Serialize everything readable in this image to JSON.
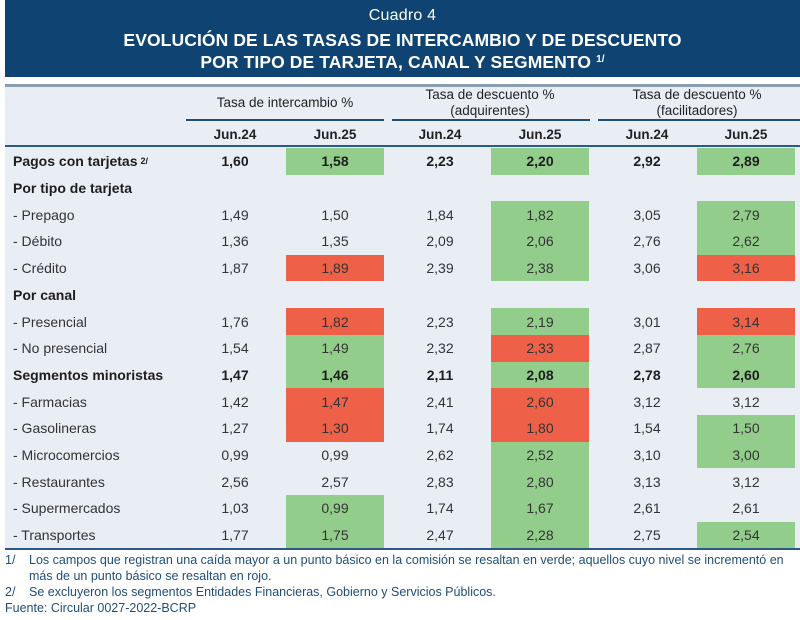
{
  "header": {
    "cuadro": "Cuadro 4",
    "title_line1": "EVOLUCIÓN DE LAS TASAS DE INTERCAMBIO Y DE DESCUENTO",
    "title_line2": "POR TIPO DE TARJETA, CANAL Y SEGMENTO",
    "title_footnote": "1/"
  },
  "column_groups": [
    {
      "line1": "Tasa de intercambio %",
      "line2": ""
    },
    {
      "line1": "Tasa de descuento %",
      "line2": "(adquirentes)"
    },
    {
      "line1": "Tasa de descuento %",
      "line2": "(facilitadores)"
    }
  ],
  "column_headers": [
    "Jun.24",
    "Jun.25",
    "Jun.24",
    "Jun.25",
    "Jun.24",
    "Jun.25"
  ],
  "highlight_colors": {
    "green": "#93cd8c",
    "red": "#ee6148",
    "header_blue": "#0e4372",
    "table_bg": "#e9edf4"
  },
  "rows": [
    {
      "label": "Pagos con tarjetas",
      "footnote": "2/",
      "type": "bold",
      "values": [
        "1,60",
        "1,58",
        "2,23",
        "2,20",
        "2,92",
        "2,89"
      ],
      "highlights": [
        "",
        "green",
        "",
        "green",
        "",
        "green"
      ]
    },
    {
      "label": "Por tipo de tarjeta",
      "type": "section",
      "values": [],
      "highlights": []
    },
    {
      "label": "- Prepago",
      "type": "normal",
      "values": [
        "1,49",
        "1,50",
        "1,84",
        "1,82",
        "3,05",
        "2,79"
      ],
      "highlights": [
        "",
        "",
        "",
        "green",
        "",
        "green"
      ]
    },
    {
      "label": "- Débito",
      "type": "normal",
      "values": [
        "1,36",
        "1,35",
        "2,09",
        "2,06",
        "2,76",
        "2,62"
      ],
      "highlights": [
        "",
        "",
        "",
        "green",
        "",
        "green"
      ]
    },
    {
      "label": "- Crédito",
      "type": "normal",
      "values": [
        "1,87",
        "1,89",
        "2,39",
        "2,38",
        "3,06",
        "3,16"
      ],
      "highlights": [
        "",
        "red",
        "",
        "green",
        "",
        "red"
      ]
    },
    {
      "label": "Por canal",
      "type": "section",
      "values": [],
      "highlights": []
    },
    {
      "label": "- Presencial",
      "type": "normal",
      "values": [
        "1,76",
        "1,82",
        "2,23",
        "2,19",
        "3,01",
        "3,14"
      ],
      "highlights": [
        "",
        "red",
        "",
        "green",
        "",
        "red"
      ]
    },
    {
      "label": "- No presencial",
      "type": "normal",
      "values": [
        "1,54",
        "1,49",
        "2,32",
        "2,33",
        "2,87",
        "2,76"
      ],
      "highlights": [
        "",
        "green",
        "",
        "red",
        "",
        "green"
      ]
    },
    {
      "label": "Segmentos minoristas",
      "type": "bold",
      "values": [
        "1,47",
        "1,46",
        "2,11",
        "2,08",
        "2,78",
        "2,60"
      ],
      "highlights": [
        "",
        "green",
        "",
        "green",
        "",
        "green"
      ]
    },
    {
      "label": "- Farmacias",
      "type": "normal",
      "values": [
        "1,42",
        "1,47",
        "2,41",
        "2,60",
        "3,12",
        "3,12"
      ],
      "highlights": [
        "",
        "red",
        "",
        "red",
        "",
        ""
      ]
    },
    {
      "label": "- Gasolineras",
      "type": "normal",
      "values": [
        "1,27",
        "1,30",
        "1,74",
        "1,80",
        "1,54",
        "1,50"
      ],
      "highlights": [
        "",
        "red",
        "",
        "red",
        "",
        "green"
      ]
    },
    {
      "label": "- Microcomercios",
      "type": "normal",
      "values": [
        "0,99",
        "0,99",
        "2,62",
        "2,52",
        "3,10",
        "3,00"
      ],
      "highlights": [
        "",
        "",
        "",
        "green",
        "",
        "green"
      ]
    },
    {
      "label": "- Restaurantes",
      "type": "normal",
      "values": [
        "2,56",
        "2,57",
        "2,83",
        "2,80",
        "3,13",
        "3,12"
      ],
      "highlights": [
        "",
        "",
        "",
        "green",
        "",
        ""
      ]
    },
    {
      "label": "- Supermercados",
      "type": "normal",
      "values": [
        "1,03",
        "0,99",
        "1,74",
        "1,67",
        "2,61",
        "2,61"
      ],
      "highlights": [
        "",
        "green",
        "",
        "green",
        "",
        ""
      ]
    },
    {
      "label": "- Transportes",
      "type": "normal",
      "values": [
        "1,77",
        "1,75",
        "2,47",
        "2,28",
        "2,75",
        "2,54"
      ],
      "highlights": [
        "",
        "green",
        "",
        "green",
        "",
        "green"
      ]
    }
  ],
  "notes": [
    {
      "num": "1/",
      "text": "Los campos que registran una caída mayor a un punto básico en la comisión se resaltan en verde; aquellos cuyo nivel se incrementó en más de un punto básico se resaltan en rojo."
    },
    {
      "num": "2/",
      "text": "Se excluyeron los segmentos Entidades Financieras, Gobierno y Servicios Públicos."
    }
  ],
  "source": "Fuente: Circular 0027-2022-BCRP"
}
